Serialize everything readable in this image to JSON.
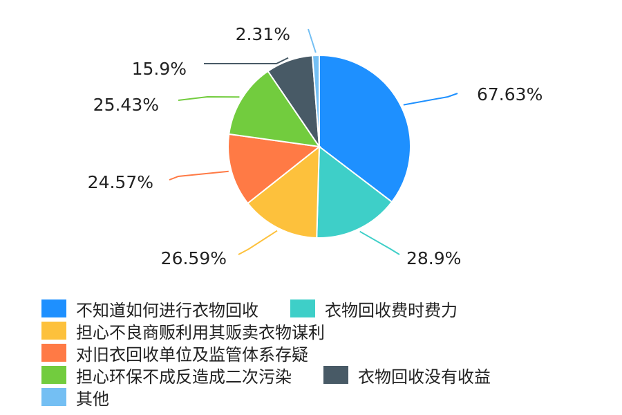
{
  "chart_data": {
    "type": "pie",
    "title": "",
    "legend_position": "bottom",
    "series": [
      {
        "name": "不知道如何进行衣物回收",
        "value": 67.63,
        "label": "67.63%",
        "color": "#1e90ff"
      },
      {
        "name": "衣物回收费时费力",
        "value": 28.9,
        "label": "28.9%",
        "color": "#3ecfc8"
      },
      {
        "name": "担心不良商贩利用其贩卖衣物谋利",
        "value": 26.59,
        "label": "26.59%",
        "color": "#fdc13c"
      },
      {
        "name": "对旧衣回收单位及监管体系存疑",
        "value": 24.57,
        "label": "24.57%",
        "color": "#ff7a45"
      },
      {
        "name": "担心环保不成反造成二次污染",
        "value": 25.43,
        "label": "25.43%",
        "color": "#72cc3e"
      },
      {
        "name": "衣物回收没有收益",
        "value": 15.9,
        "label": "15.9%",
        "color": "#485a66"
      },
      {
        "name": "其他",
        "value": 2.31,
        "label": "2.31%",
        "color": "#74bff3"
      }
    ]
  }
}
